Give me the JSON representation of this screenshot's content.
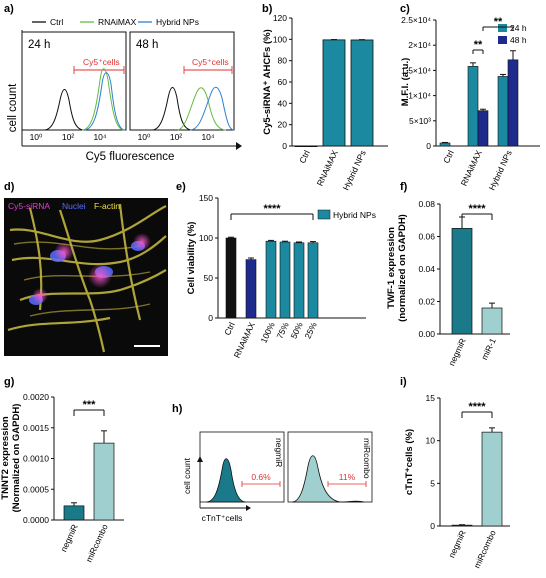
{
  "colors": {
    "teal": "#1b8aa0",
    "navy": "#1e2a8c",
    "black": "#111111",
    "light_teal": "#9fcfcf",
    "green": "#66bb44",
    "blue": "#2d7fd0",
    "red": "#e03030",
    "hist_teal": "#1b7a8a"
  },
  "panel_letters": [
    "a)",
    "b)",
    "c)",
    "d)",
    "e)",
    "f)",
    "g)",
    "h)",
    "i)"
  ],
  "panel_a": {
    "legend": [
      "Ctrl",
      "RNAiMAX",
      "Hybrid NPs"
    ],
    "times": [
      "24 h",
      "48 h"
    ],
    "gate_label": "Cy5⁺cells",
    "xlabel": "Cy5 fluorescence",
    "ylabel": "cell count",
    "ticks": [
      "10⁰",
      "10²",
      "10⁴",
      "10⁰",
      "10²",
      "10⁴"
    ]
  },
  "panel_d": {
    "labels": [
      "Cy5-siRNA",
      "Nuclei",
      "F-actin"
    ],
    "label_colors": [
      "#e040d0",
      "#5a6cff",
      "#f0e040"
    ]
  },
  "panel_h": {
    "ylabel": "cell count",
    "xlabel": "cTnT⁺cells",
    "samples": [
      "negmiR",
      "miRcombo"
    ],
    "percents": [
      "0.6%",
      "11%"
    ]
  },
  "chart_data": [
    {
      "panel": "b",
      "type": "bar",
      "categories": [
        "Ctrl",
        "RNAiMAX",
        "Hybrid NPs"
      ],
      "values": [
        0,
        99.5,
        99.4
      ],
      "errors": [
        0,
        0.3,
        0.3
      ],
      "ylabel": "Cy5-siRNA⁺ AHCFs (%)",
      "ylim": [
        0,
        120
      ],
      "yticks": [
        "0",
        "20",
        "40",
        "60",
        "80",
        "100",
        "120"
      ]
    },
    {
      "panel": "c",
      "type": "bar",
      "categories": [
        "Ctrl",
        "RNAiMAX",
        "Hybrid NPs"
      ],
      "series": [
        {
          "name": "24 h",
          "values": [
            600,
            15800,
            13800
          ],
          "errors": [
            100,
            700,
            400
          ]
        },
        {
          "name": "48 h",
          "values": [
            0,
            7000,
            17100
          ],
          "errors": [
            0,
            300,
            1800
          ]
        }
      ],
      "ylabel": "M.F.I. (a.u.)",
      "ylim": [
        0,
        25000
      ],
      "yticks": [
        "0",
        "5×10³",
        "1×10⁴",
        "1.5×10⁴",
        "2×10⁴",
        "2.5×10⁴"
      ],
      "significance": [
        "**",
        "**"
      ]
    },
    {
      "panel": "e",
      "type": "bar",
      "categories": [
        "Ctrl",
        "RNAiMAX",
        "100%",
        "75%",
        "50%",
        "25%"
      ],
      "values": [
        100,
        73,
        96,
        95,
        94,
        94
      ],
      "errors": [
        1,
        2,
        1,
        1,
        1,
        1.5
      ],
      "ylabel": "Cell viability (%)",
      "ylim": [
        0,
        150
      ],
      "yticks": [
        "0",
        "50",
        "100",
        "150"
      ],
      "legend": "Hybrid NPs",
      "significance": "****"
    },
    {
      "panel": "f",
      "type": "bar",
      "categories": [
        "negmiR",
        "miR-1"
      ],
      "values": [
        0.065,
        0.016
      ],
      "errors": [
        0.007,
        0.003
      ],
      "ylabel": "TWF-1 expression (normalized on GAPDH)",
      "ylim": [
        0,
        0.08
      ],
      "yticks": [
        "0.00",
        "0.02",
        "0.04",
        "0.06",
        "0.08"
      ],
      "significance": "****"
    },
    {
      "panel": "g",
      "type": "bar",
      "categories": [
        "negmiR",
        "miRcombo"
      ],
      "values": [
        0.00023,
        0.00125
      ],
      "errors": [
        5e-05,
        0.0002
      ],
      "ylabel": "TNNT2 expression (Normalized on GAPDH)",
      "ylim": [
        0,
        0.002
      ],
      "yticks": [
        "0.0000",
        "0.0005",
        "0.0010",
        "0.0015",
        "0.0020"
      ],
      "significance": "***"
    },
    {
      "panel": "i",
      "type": "bar",
      "categories": [
        "negmiR",
        "miRcombo"
      ],
      "values": [
        0.1,
        11
      ],
      "errors": [
        0.05,
        0.5
      ],
      "ylabel": "cTnT⁺cells (%)",
      "ylim": [
        0,
        15
      ],
      "yticks": [
        "0",
        "5",
        "10",
        "15"
      ],
      "significance": "****"
    }
  ]
}
